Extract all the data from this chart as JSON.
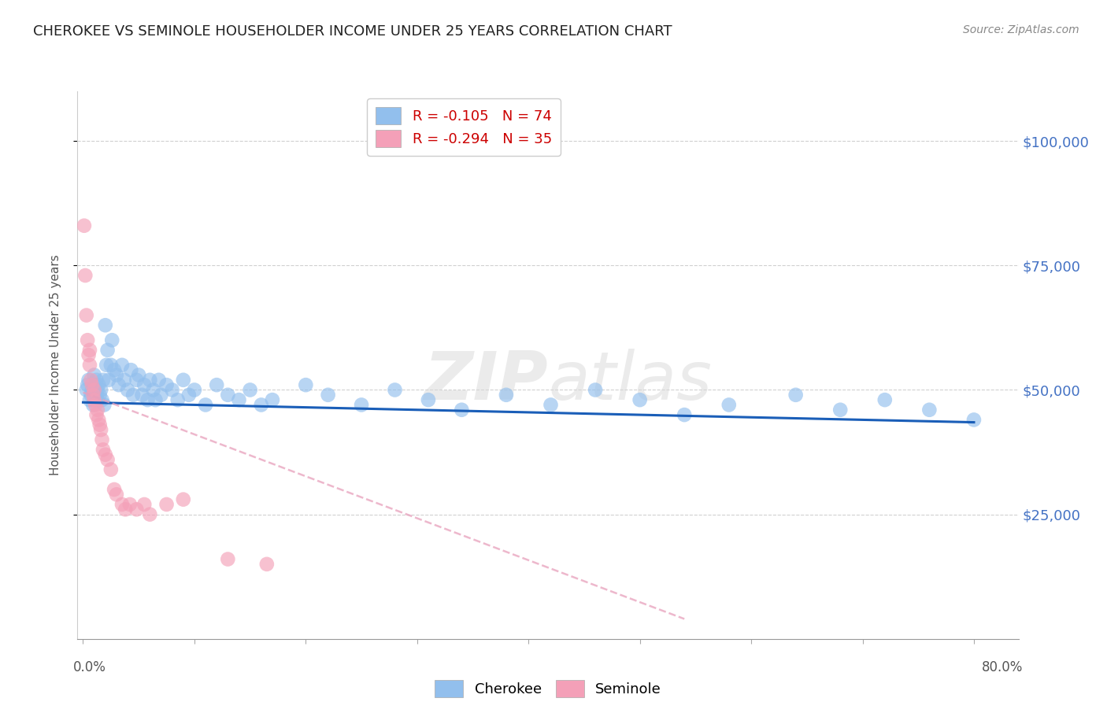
{
  "title": "CHEROKEE VS SEMINOLE HOUSEHOLDER INCOME UNDER 25 YEARS CORRELATION CHART",
  "source": "Source: ZipAtlas.com",
  "ylabel": "Householder Income Under 25 years",
  "ytick_labels": [
    "$25,000",
    "$50,000",
    "$75,000",
    "$100,000"
  ],
  "ytick_values": [
    25000,
    50000,
    75000,
    100000
  ],
  "ymin": 0,
  "ymax": 110000,
  "xmin": -0.005,
  "xmax": 0.84,
  "watermark": "ZIPatlas",
  "cherokee_color": "#92bfed",
  "seminole_color": "#f4a0b8",
  "cherokee_line_color": "#1a5eb8",
  "seminole_line_color": "#e8a0bc",
  "background_color": "#ffffff",
  "grid_color": "#d0d0d0",
  "cherokee_x": [
    0.003,
    0.004,
    0.005,
    0.006,
    0.007,
    0.008,
    0.009,
    0.01,
    0.01,
    0.011,
    0.012,
    0.012,
    0.013,
    0.013,
    0.014,
    0.015,
    0.016,
    0.017,
    0.018,
    0.019,
    0.02,
    0.021,
    0.022,
    0.023,
    0.025,
    0.026,
    0.028,
    0.03,
    0.032,
    0.035,
    0.037,
    0.04,
    0.043,
    0.045,
    0.048,
    0.05,
    0.053,
    0.055,
    0.058,
    0.06,
    0.063,
    0.065,
    0.068,
    0.07,
    0.075,
    0.08,
    0.085,
    0.09,
    0.095,
    0.1,
    0.11,
    0.12,
    0.13,
    0.14,
    0.15,
    0.16,
    0.17,
    0.2,
    0.22,
    0.25,
    0.28,
    0.31,
    0.34,
    0.38,
    0.42,
    0.46,
    0.5,
    0.54,
    0.58,
    0.64,
    0.68,
    0.72,
    0.76,
    0.8
  ],
  "cherokee_y": [
    50000,
    51000,
    52000,
    48000,
    49000,
    50000,
    47000,
    48000,
    53000,
    51000,
    49000,
    52000,
    48000,
    50000,
    51000,
    49000,
    50000,
    48000,
    52000,
    47000,
    63000,
    55000,
    58000,
    52000,
    55000,
    60000,
    54000,
    53000,
    51000,
    55000,
    52000,
    50000,
    54000,
    49000,
    52000,
    53000,
    49000,
    51000,
    48000,
    52000,
    50000,
    48000,
    52000,
    49000,
    51000,
    50000,
    48000,
    52000,
    49000,
    50000,
    47000,
    51000,
    49000,
    48000,
    50000,
    47000,
    48000,
    51000,
    49000,
    47000,
    50000,
    48000,
    46000,
    49000,
    47000,
    50000,
    48000,
    45000,
    47000,
    49000,
    46000,
    48000,
    46000,
    44000
  ],
  "seminole_x": [
    0.001,
    0.002,
    0.003,
    0.004,
    0.005,
    0.006,
    0.006,
    0.007,
    0.008,
    0.009,
    0.01,
    0.01,
    0.011,
    0.012,
    0.013,
    0.014,
    0.015,
    0.016,
    0.017,
    0.018,
    0.02,
    0.022,
    0.025,
    0.028,
    0.03,
    0.035,
    0.038,
    0.042,
    0.048,
    0.055,
    0.06,
    0.075,
    0.09,
    0.13,
    0.165
  ],
  "seminole_y": [
    83000,
    73000,
    65000,
    60000,
    57000,
    55000,
    58000,
    52000,
    51000,
    49000,
    50000,
    48000,
    47000,
    45000,
    46000,
    44000,
    43000,
    42000,
    40000,
    38000,
    37000,
    36000,
    34000,
    30000,
    29000,
    27000,
    26000,
    27000,
    26000,
    27000,
    25000,
    27000,
    28000,
    16000,
    15000
  ]
}
